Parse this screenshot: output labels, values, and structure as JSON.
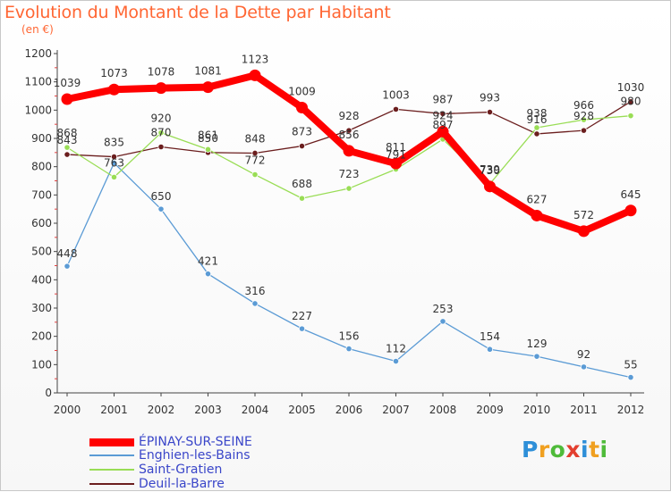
{
  "title": "Evolution du Montant de la Dette par Habitant",
  "subtitle": "(en €)",
  "logo": "Proxiti",
  "chart_data": {
    "type": "line",
    "x": [
      "2000",
      "2001",
      "2002",
      "2003",
      "2004",
      "2005",
      "2006",
      "2007",
      "2008",
      "2009",
      "2010",
      "2011",
      "2012"
    ],
    "y_ticks": [
      0,
      100,
      200,
      300,
      400,
      500,
      600,
      700,
      800,
      900,
      1000,
      1100,
      1200
    ],
    "ylim": [
      0,
      1200
    ],
    "grid": false,
    "legend_position": "bottom-left",
    "series": [
      {
        "name": "ÉPINAY-SUR-SEINE",
        "color": "#ff0000",
        "values": [
          1039,
          1073,
          1078,
          1081,
          1123,
          1009,
          856,
          811,
          924,
          730,
          627,
          572,
          645
        ],
        "labels": [
          "1039",
          "1073",
          "1078",
          "1081",
          "1123",
          "1009",
          "856",
          "811",
          "924",
          "730",
          "627",
          "572",
          "645"
        ]
      },
      {
        "name": "Enghien-les-Bains",
        "color": "#5b9bd5",
        "values": [
          448,
          813,
          650,
          421,
          316,
          227,
          156,
          112,
          253,
          154,
          129,
          92,
          55
        ],
        "labels": [
          "448",
          "",
          "650",
          "421",
          "316",
          "227",
          "156",
          "112",
          "253",
          "154",
          "129",
          "92",
          "55"
        ]
      },
      {
        "name": "Saint-Gratien",
        "color": "#99dd55",
        "values": [
          868,
          763,
          920,
          861,
          772,
          688,
          723,
          791,
          897,
          739,
          938,
          966,
          980
        ],
        "labels": [
          "868",
          "763",
          "920",
          "861",
          "772",
          "688",
          "723",
          "791",
          "897",
          "739",
          "938",
          "966",
          "980"
        ]
      },
      {
        "name": "Deuil-la-Barre",
        "color": "#6b1e1e",
        "values": [
          843,
          835,
          870,
          850,
          848,
          873,
          928,
          1003,
          987,
          993,
          916,
          928,
          1030
        ],
        "labels": [
          "843",
          "835",
          "870",
          "850",
          "848",
          "873",
          "928",
          "1003",
          "987",
          "993",
          "916",
          "928",
          "1030"
        ]
      }
    ]
  }
}
